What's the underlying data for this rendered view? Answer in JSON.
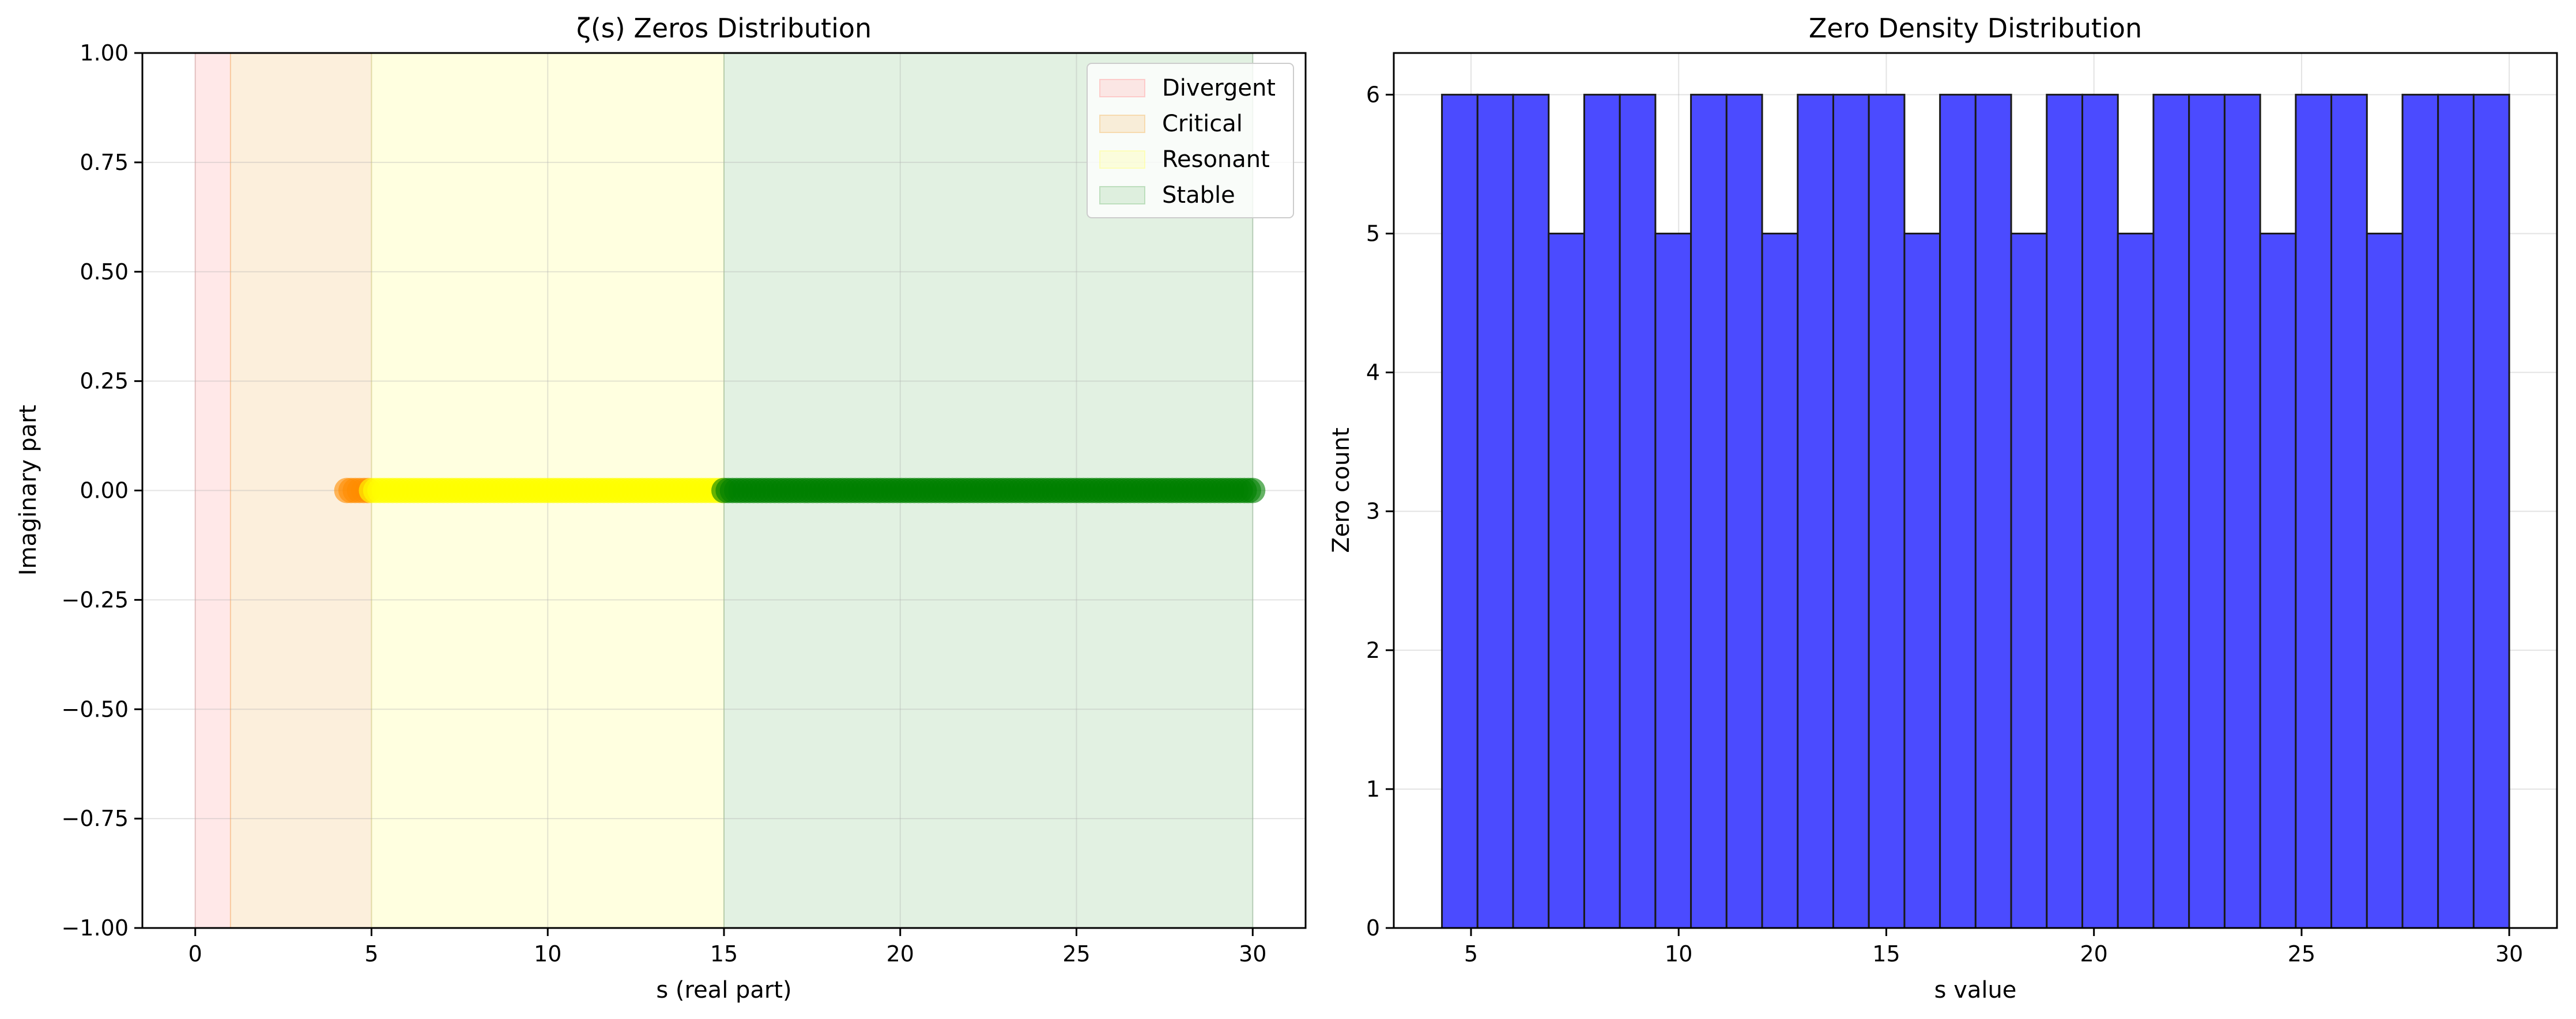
{
  "chart_data": [
    {
      "type": "scatter",
      "title": "ζ(s) Zeros Distribution",
      "xlabel": "s (real part)",
      "ylabel": "Imaginary part",
      "xlim": [
        -1.5,
        31.5
      ],
      "ylim": [
        -1.0,
        1.0
      ],
      "grid": true,
      "legend_position": "top-right",
      "x_ticks": [
        0,
        5,
        10,
        15,
        20,
        25,
        30
      ],
      "x_tick_labels": [
        "0",
        "5",
        "10",
        "15",
        "20",
        "25",
        "30"
      ],
      "y_ticks": [
        1.0,
        0.75,
        0.5,
        0.25,
        0.0,
        -0.25,
        -0.5,
        -0.75,
        -1.0
      ],
      "y_tick_labels": [
        "1.00",
        "0.75",
        "0.50",
        "0.25",
        "0.00",
        "−0.25",
        "−0.50",
        "−0.75",
        "−1.00"
      ],
      "regions": [
        {
          "name": "Divergent",
          "x_start": 0,
          "x_end": 1,
          "color": "#ffb3b3"
        },
        {
          "name": "Critical",
          "x_start": 1,
          "x_end": 5,
          "color": "#f5c98a"
        },
        {
          "name": "Resonant",
          "x_start": 5,
          "x_end": 15,
          "color": "#ffff99"
        },
        {
          "name": "Stable",
          "x_start": 15,
          "x_end": 30,
          "color": "#9fcf9f"
        }
      ],
      "series": [
        {
          "color": "#ff8c00",
          "x_start": 4.3,
          "x_end": 5.0,
          "y": 0.0
        },
        {
          "color": "#ffff00",
          "x_start": 5.0,
          "x_end": 15.0,
          "y": 0.0
        },
        {
          "color": "#008000",
          "x_start": 15.0,
          "x_end": 30.0,
          "y": 0.0
        }
      ]
    },
    {
      "type": "bar",
      "title": "Zero Density Distribution",
      "xlabel": "s value",
      "ylabel": "Zero count",
      "xlim": [
        3.14,
        31.15
      ],
      "ylim": [
        0,
        6.3
      ],
      "grid": true,
      "x_ticks": [
        5,
        10,
        15,
        20,
        25,
        30
      ],
      "x_tick_labels": [
        "5",
        "10",
        "15",
        "20",
        "25",
        "30"
      ],
      "y_ticks": [
        0,
        1,
        2,
        3,
        4,
        5,
        6
      ],
      "y_tick_labels": [
        "0",
        "1",
        "2",
        "3",
        "4",
        "5",
        "6"
      ],
      "bin_start": 4.3,
      "bin_end": 30.0,
      "bar_color": "#4b4bff",
      "edge_color": "#1a1a1a",
      "values": [
        6,
        6,
        6,
        5,
        6,
        6,
        5,
        6,
        6,
        5,
        6,
        6,
        6,
        5,
        6,
        6,
        5,
        6,
        6,
        5,
        6,
        6,
        6,
        5,
        6,
        6,
        5,
        6,
        6,
        6
      ]
    }
  ]
}
